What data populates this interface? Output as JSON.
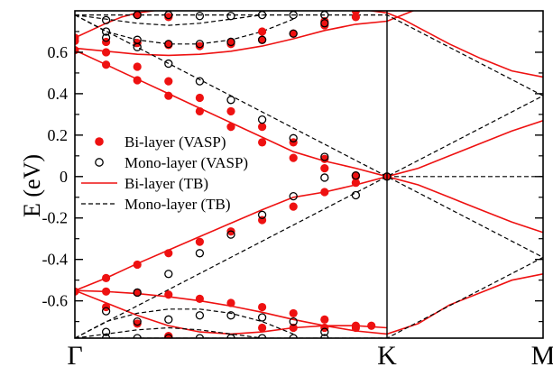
{
  "chart_data": {
    "type": "line",
    "title": "",
    "xlabel": "",
    "ylabel": "E (eV)",
    "xlim": [
      0,
      1.5
    ],
    "ylim": [
      -0.78,
      0.8
    ],
    "k_points": [
      {
        "label": "Γ",
        "x": 0
      },
      {
        "label": "K",
        "x": 1
      },
      {
        "label": "M",
        "x": 1.5
      }
    ],
    "yticks": [
      -0.6,
      -0.4,
      -0.2,
      0,
      0.2,
      0.4,
      0.6
    ],
    "ytick_labels": [
      "-0.6",
      "-0.4",
      "-0.2",
      "0",
      "0.2",
      "0.4",
      "0.6"
    ],
    "grid": false,
    "legend_position": "center-left",
    "colors": {
      "bilayer": "#ee1111",
      "monolayer": "#000000"
    },
    "legend": [
      {
        "label": "Bi-layer (VASP)",
        "style": "filled-circle",
        "color": "#ee1111"
      },
      {
        "label": "Mono-layer (VASP)",
        "style": "open-circle",
        "color": "#000000"
      },
      {
        "label": "Bi-layer (TB)",
        "style": "solid-line",
        "color": "#ee1111"
      },
      {
        "label": "Mono-layer (TB)",
        "style": "dashed-line",
        "color": "#000000"
      }
    ],
    "series": [
      {
        "name": "Bi-layer (TB)",
        "style": "solid",
        "color": "#ee1111",
        "x": [
          0,
          0.1,
          0.2,
          0.3,
          0.4,
          0.5,
          0.6,
          0.7,
          0.8,
          0.9,
          1.0,
          1.1,
          1.2,
          1.3,
          1.4,
          1.5
        ],
        "values": [
          0.61,
          0.54,
          0.47,
          0.4,
          0.33,
          0.26,
          0.19,
          0.12,
          0.075,
          0.04,
          0.0,
          -0.04,
          -0.1,
          -0.16,
          -0.22,
          -0.27
        ]
      },
      {
        "name": "Bi-layer (TB)",
        "style": "solid",
        "color": "#ee1111",
        "x": [
          0,
          0.1,
          0.2,
          0.3,
          0.4,
          0.5,
          0.6,
          0.7,
          0.8,
          0.9,
          1.0,
          1.1,
          1.2,
          1.3,
          1.4,
          1.5
        ],
        "values": [
          -0.55,
          -0.49,
          -0.42,
          -0.355,
          -0.29,
          -0.225,
          -0.16,
          -0.1,
          -0.075,
          -0.04,
          0.0,
          0.04,
          0.1,
          0.16,
          0.22,
          0.27
        ]
      },
      {
        "name": "Bi-layer (TB)",
        "style": "solid",
        "color": "#ee1111",
        "x": [
          0,
          0.1,
          0.2,
          0.3,
          0.4,
          0.5,
          0.6,
          0.7,
          0.8,
          0.9,
          1.0,
          1.1,
          1.2,
          1.3,
          1.4,
          1.5
        ],
        "values": [
          0.62,
          0.605,
          0.59,
          0.585,
          0.59,
          0.605,
          0.63,
          0.665,
          0.705,
          0.735,
          0.75,
          0.81,
          0.81,
          0.81,
          0.81,
          0.81
        ]
      },
      {
        "name": "Bi-layer (TB)",
        "style": "solid",
        "color": "#ee1111",
        "x": [
          0,
          0.1,
          0.2,
          0.3,
          0.4,
          0.5,
          0.6,
          0.7,
          0.8,
          0.9,
          1.0,
          1.1,
          1.2,
          1.3,
          1.4,
          1.5
        ],
        "values": [
          -0.55,
          -0.555,
          -0.565,
          -0.58,
          -0.6,
          -0.625,
          -0.655,
          -0.69,
          -0.72,
          -0.745,
          -0.76,
          -0.71,
          -0.62,
          -0.56,
          -0.5,
          -0.47
        ]
      },
      {
        "name": "Bi-layer (TB)",
        "style": "solid",
        "color": "#ee1111",
        "x": [
          0,
          0.1,
          0.15,
          0.2,
          0.3,
          0.4,
          0.5,
          0.6,
          0.7,
          0.8,
          0.9,
          1.0,
          1.05,
          1.1,
          1.2,
          1.3,
          1.4,
          1.5
        ],
        "values": [
          0.67,
          0.74,
          0.77,
          0.79,
          0.81,
          0.81,
          0.81,
          0.81,
          0.81,
          0.81,
          0.81,
          0.79,
          0.76,
          0.72,
          0.64,
          0.57,
          0.51,
          0.48
        ]
      },
      {
        "name": "Bi-layer (TB)",
        "style": "solid",
        "color": "#ee1111",
        "x": [
          0,
          0.1,
          0.2,
          0.3,
          0.4,
          0.5,
          0.6,
          0.7,
          0.8,
          0.9,
          1.0
        ],
        "values": [
          -0.55,
          -0.61,
          -0.67,
          -0.72,
          -0.75,
          -0.76,
          -0.75,
          -0.73,
          -0.72,
          -0.72,
          -0.73
        ]
      },
      {
        "name": "Mono-layer (TB)",
        "style": "dashed",
        "color": "#000000",
        "x": [
          0,
          0.5,
          1.0,
          1.5
        ],
        "values": [
          0.78,
          0.39,
          0.0,
          -0.39
        ]
      },
      {
        "name": "Mono-layer (TB)",
        "style": "dashed",
        "color": "#000000",
        "x": [
          0,
          0.5,
          1.0,
          1.5
        ],
        "values": [
          -0.78,
          -0.39,
          0.0,
          0.39
        ]
      },
      {
        "name": "Mono-layer (TB)",
        "style": "dashed",
        "color": "#000000",
        "x": [
          0,
          1.0,
          1.5
        ],
        "values": [
          0.78,
          0.78,
          0.39
        ]
      },
      {
        "name": "Mono-layer (TB)",
        "style": "dashed",
        "color": "#000000",
        "x": [
          0,
          1.0,
          1.5
        ],
        "values": [
          -0.78,
          -0.78,
          -0.39
        ]
      },
      {
        "name": "Mono-layer (TB)",
        "style": "dashed",
        "color": "#000000",
        "x": [
          1.0,
          1.5
        ],
        "values": [
          0.0,
          0.0
        ]
      },
      {
        "name": "Mono-layer (TB)",
        "style": "dashed",
        "color": "#000000",
        "x": [
          0,
          0.1,
          0.2,
          0.3,
          0.4,
          0.5,
          0.6,
          0.7
        ],
        "values": [
          0.78,
          0.7,
          0.66,
          0.64,
          0.64,
          0.66,
          0.7,
          0.76
        ]
      },
      {
        "name": "Mono-layer (TB)",
        "style": "dashed",
        "color": "#000000",
        "x": [
          0,
          0.1,
          0.2,
          0.3,
          0.4,
          0.5,
          0.6,
          0.7
        ],
        "values": [
          -0.78,
          -0.7,
          -0.66,
          -0.64,
          -0.64,
          -0.66,
          -0.7,
          -0.76
        ]
      },
      {
        "name": "Mono-layer (TB)",
        "style": "dashed",
        "color": "#000000",
        "x": [
          0,
          0.1,
          0.2,
          0.3,
          0.4,
          0.5,
          0.6
        ],
        "values": [
          0.78,
          0.76,
          0.74,
          0.73,
          0.74,
          0.76,
          0.78
        ]
      },
      {
        "name": "Mono-layer (TB)",
        "style": "dashed",
        "color": "#000000",
        "x": [
          0,
          0.1,
          0.2,
          0.3,
          0.4,
          0.5,
          0.6
        ],
        "values": [
          -0.78,
          -0.76,
          -0.74,
          -0.73,
          -0.74,
          -0.76,
          -0.78
        ]
      }
    ],
    "points": [
      {
        "name": "Bi-layer (VASP)",
        "style": "filled",
        "color": "#ee1111",
        "x": [
          0,
          0.1,
          0.2,
          0.3,
          0.4,
          0.5,
          0.6,
          0.7,
          0.8,
          0.9,
          1.0,
          0.1,
          0.2,
          0.3,
          0.4,
          0.5,
          0.6,
          0.7,
          0.8,
          0.9,
          0,
          0.1,
          0.2,
          0.3,
          0.4,
          0.5,
          0.6,
          0.7,
          0.8,
          0.9,
          0,
          0.1,
          0.2,
          0.3,
          0.4,
          0.5,
          0.6,
          0.7,
          0.8,
          0.9,
          0,
          0.1,
          0.2,
          0.3,
          0.4,
          0.5,
          0.6,
          0.7,
          0.8,
          0.9,
          0.2,
          0.3,
          0.5,
          0.6,
          0.8,
          0.9,
          0.1,
          0.2,
          0.3,
          0.6,
          0.7,
          0.8,
          0.9,
          0.95,
          0.3
        ],
        "values": [
          0.61,
          0.54,
          0.465,
          0.39,
          0.315,
          0.24,
          0.165,
          0.09,
          0.04,
          0.0,
          0.0,
          -0.49,
          -0.425,
          -0.37,
          -0.315,
          -0.265,
          -0.21,
          -0.145,
          -0.075,
          -0.03,
          0.67,
          0.6,
          0.53,
          0.46,
          0.38,
          0.315,
          0.24,
          0.165,
          0.085,
          0.005,
          -0.555,
          -0.555,
          -0.56,
          -0.57,
          -0.59,
          -0.61,
          -0.63,
          -0.66,
          -0.69,
          -0.72,
          0.655,
          0.65,
          0.645,
          0.635,
          0.63,
          0.64,
          0.66,
          0.69,
          0.73,
          0.77,
          0.78,
          0.77,
          0.65,
          0.7,
          0.75,
          0.8,
          -0.63,
          -0.71,
          -0.77,
          -0.73,
          -0.73,
          -0.73,
          -0.73,
          -0.72,
          -0.77
        ]
      },
      {
        "name": "Mono-layer (VASP)",
        "style": "open",
        "color": "#000000",
        "x": [
          0.1,
          0.2,
          0.3,
          0.4,
          0.5,
          0.6,
          0.7,
          0.8,
          0.9,
          1.0,
          0.1,
          0.2,
          0.3,
          0.4,
          0.5,
          0.6,
          0.7,
          0.8,
          0.9,
          0.1,
          0.2,
          0.3,
          0.4,
          0.5,
          0.6,
          0.7,
          0.8,
          0.1,
          0.2,
          0.3,
          0.4,
          0.5,
          0.6,
          0.7,
          0.8,
          0.1,
          0.2,
          0.3,
          0.4,
          0.5,
          0.6,
          0.7,
          0.8,
          0.1,
          0.2,
          0.3,
          0.4,
          0.5,
          0.6,
          0.7,
          0.8
        ],
        "values": [
          0.7,
          0.625,
          0.545,
          0.46,
          0.37,
          0.275,
          0.185,
          0.095,
          0.005,
          0.0,
          -0.65,
          -0.56,
          -0.47,
          -0.37,
          -0.28,
          -0.185,
          -0.095,
          -0.005,
          -0.09,
          0.755,
          0.78,
          0.78,
          0.775,
          0.775,
          0.78,
          0.78,
          0.78,
          0.67,
          0.66,
          0.64,
          0.64,
          0.65,
          0.66,
          0.69,
          0.74,
          -0.75,
          -0.7,
          -0.69,
          -0.67,
          -0.67,
          -0.68,
          -0.7,
          -0.75,
          -0.78,
          -0.78,
          -0.78,
          -0.78,
          -0.78,
          -0.78,
          -0.78,
          -0.78
        ]
      }
    ]
  }
}
